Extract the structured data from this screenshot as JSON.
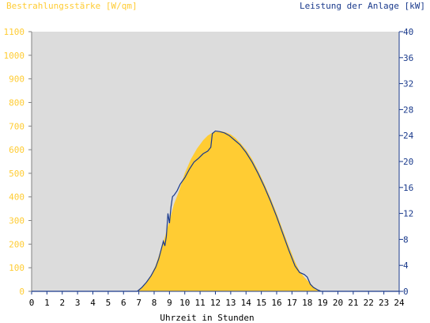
{
  "chart_data": {
    "type": "area",
    "left_axis_title": "Bestrahlungsstärke [W/qm]",
    "right_axis_title": "Leistung der Anlage [kW]",
    "xlabel": "Uhrzeit in Stunden",
    "xlim": [
      0,
      24
    ],
    "ylim_left": [
      0,
      1100
    ],
    "ylim_right": [
      0,
      40
    ],
    "x_ticks": [
      "0",
      "1",
      "2",
      "3",
      "4",
      "5",
      "6",
      "7",
      "8",
      "9",
      "10",
      "11",
      "12",
      "13",
      "14",
      "15",
      "16",
      "17",
      "18",
      "19",
      "20",
      "21",
      "22",
      "23",
      "24"
    ],
    "y_left_ticks": [
      "0",
      "100",
      "200",
      "300",
      "400",
      "500",
      "600",
      "700",
      "800",
      "900",
      "1000",
      "1100"
    ],
    "y_right_ticks": [
      "0",
      "4",
      "8",
      "12",
      "16",
      "20",
      "24",
      "28",
      "32",
      "36",
      "40"
    ],
    "grid": false,
    "colors": {
      "background": "#dcdcdc",
      "irradiance_fill": "#ffcc33",
      "power_line": "#1a3a8c",
      "left_axis_text": "#ffcc33",
      "right_axis_text": "#1a3a8c"
    },
    "series": [
      {
        "name": "Bestrahlungsstärke [W/qm]",
        "axis": "left",
        "style": "area",
        "x": [
          0,
          6.9,
          7.2,
          7.5,
          7.8,
          8.1,
          8.4,
          8.7,
          9.0,
          9.3,
          9.6,
          10.0,
          10.4,
          10.8,
          11.2,
          11.5,
          11.8,
          12.1,
          12.4,
          12.7,
          13.0,
          13.3,
          13.6,
          14.0,
          14.4,
          14.8,
          15.2,
          15.6,
          16.0,
          16.4,
          16.8,
          17.2,
          17.5,
          17.8,
          18.1,
          18.4,
          18.7,
          18.9,
          19.2,
          24
        ],
        "y": [
          0,
          0,
          15,
          40,
          70,
          110,
          170,
          230,
          300,
          370,
          420,
          500,
          560,
          605,
          640,
          660,
          672,
          677,
          678,
          673,
          665,
          650,
          630,
          600,
          560,
          510,
          455,
          395,
          330,
          260,
          190,
          125,
          85,
          60,
          40,
          20,
          6,
          2,
          0,
          0
        ]
      },
      {
        "name": "Leistung der Anlage [kW]",
        "axis": "right",
        "style": "line",
        "x": [
          0,
          6.9,
          7.2,
          7.5,
          7.8,
          8.1,
          8.3,
          8.5,
          8.6,
          8.7,
          8.8,
          8.9,
          9.0,
          9.1,
          9.2,
          9.3,
          9.5,
          9.7,
          10.0,
          10.3,
          10.6,
          10.9,
          11.2,
          11.5,
          11.7,
          11.8,
          12.0,
          12.3,
          12.6,
          12.9,
          13.2,
          13.6,
          14.0,
          14.4,
          14.8,
          15.2,
          15.6,
          16.0,
          16.4,
          16.8,
          17.2,
          17.5,
          17.8,
          18.0,
          18.2,
          18.4,
          18.7,
          18.9,
          19.2,
          24
        ],
        "y": [
          0,
          0,
          0.6,
          1.4,
          2.4,
          3.7,
          5.0,
          6.8,
          7.7,
          7.0,
          8.5,
          12.0,
          10.5,
          13.0,
          14.6,
          14.8,
          15.5,
          16.5,
          17.5,
          18.8,
          19.9,
          20.5,
          21.2,
          21.6,
          22.2,
          24.3,
          24.7,
          24.6,
          24.4,
          24.0,
          23.4,
          22.6,
          21.4,
          19.9,
          18.1,
          16.1,
          13.9,
          11.5,
          8.9,
          6.3,
          3.9,
          2.9,
          2.6,
          2.2,
          1.1,
          0.6,
          0.2,
          0,
          0,
          0
        ]
      }
    ]
  }
}
